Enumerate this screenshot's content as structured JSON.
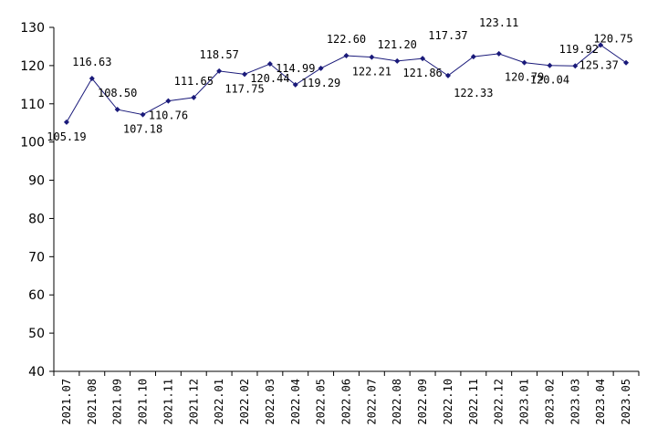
{
  "chart_data": {
    "type": "line",
    "title": "",
    "xlabel": "",
    "ylabel": "",
    "ylim": [
      40,
      130
    ],
    "yticks": [
      40,
      50,
      60,
      70,
      80,
      90,
      100,
      110,
      120,
      130
    ],
    "grid": false,
    "legend": "none",
    "categories": [
      "2021.07",
      "2021.08",
      "2021.09",
      "2021.10",
      "2021.11",
      "2021.12",
      "2022.01",
      "2022.02",
      "2022.03",
      "2022.04",
      "2022.05",
      "2022.06",
      "2022.07",
      "2022.08",
      "2022.09",
      "2022.10",
      "2022.11",
      "2022.12",
      "2023.01",
      "2023.02",
      "2023.03",
      "2023.04",
      "2023.05"
    ],
    "series": [
      {
        "values": [
          105.19,
          116.63,
          108.5,
          107.18,
          110.76,
          111.65,
          118.57,
          117.75,
          120.44,
          114.99,
          119.29,
          122.6,
          122.21,
          121.2,
          121.86,
          117.37,
          122.33,
          123.11,
          120.79,
          120.04,
          119.92,
          125.37,
          120.75
        ],
        "color": "#1a1a7a"
      }
    ],
    "data_labels": [
      "105.19",
      "116.63",
      "108.50",
      "107.18",
      "110.76",
      "111.65",
      "118.57",
      "117.75",
      "120.44",
      "114.99",
      "119.29",
      "122.60",
      "122.21",
      "121.20",
      "121.86",
      "117.37",
      "122.33",
      "123.11",
      "120.79",
      "120.04",
      "119.92",
      "125.37",
      "120.75"
    ]
  }
}
